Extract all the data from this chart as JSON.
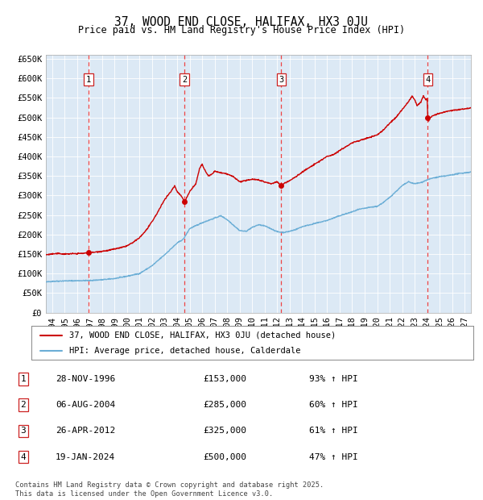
{
  "title": "37, WOOD END CLOSE, HALIFAX, HX3 0JU",
  "subtitle": "Price paid vs. HM Land Registry's House Price Index (HPI)",
  "legend_line1": "37, WOOD END CLOSE, HALIFAX, HX3 0JU (detached house)",
  "legend_line2": "HPI: Average price, detached house, Calderdale",
  "footer_line1": "Contains HM Land Registry data © Crown copyright and database right 2025.",
  "footer_line2": "This data is licensed under the Open Government Licence v3.0.",
  "sales": [
    {
      "num": 1,
      "date_dec": 1996.91,
      "price": 153000,
      "label": "28-NOV-1996",
      "pct": "93% ↑ HPI"
    },
    {
      "num": 2,
      "date_dec": 2004.59,
      "price": 285000,
      "label": "06-AUG-2004",
      "pct": "60% ↑ HPI"
    },
    {
      "num": 3,
      "date_dec": 2012.32,
      "price": 325000,
      "label": "26-APR-2012",
      "pct": "61% ↑ HPI"
    },
    {
      "num": 4,
      "date_dec": 2024.05,
      "price": 500000,
      "label": "19-JAN-2024",
      "pct": "47% ↑ HPI"
    }
  ],
  "hpi_color": "#6baed6",
  "price_color": "#cc0000",
  "vline_color": "#ee4444",
  "plot_bg": "#dce9f5",
  "ylim": [
    0,
    660000
  ],
  "xlim_start": 1993.5,
  "xlim_end": 2027.5,
  "yticks": [
    0,
    50000,
    100000,
    150000,
    200000,
    250000,
    300000,
    350000,
    400000,
    450000,
    500000,
    550000,
    600000,
    650000
  ],
  "ytick_labels": [
    "£0",
    "£50K",
    "£100K",
    "£150K",
    "£200K",
    "£250K",
    "£300K",
    "£350K",
    "£400K",
    "£450K",
    "£500K",
    "£550K",
    "£600K",
    "£650K"
  ],
  "xticks": [
    1994,
    1995,
    1996,
    1997,
    1998,
    1999,
    2000,
    2001,
    2002,
    2003,
    2004,
    2005,
    2006,
    2007,
    2008,
    2009,
    2010,
    2011,
    2012,
    2013,
    2014,
    2015,
    2016,
    2017,
    2018,
    2019,
    2020,
    2021,
    2022,
    2023,
    2024,
    2025,
    2026,
    2027
  ]
}
